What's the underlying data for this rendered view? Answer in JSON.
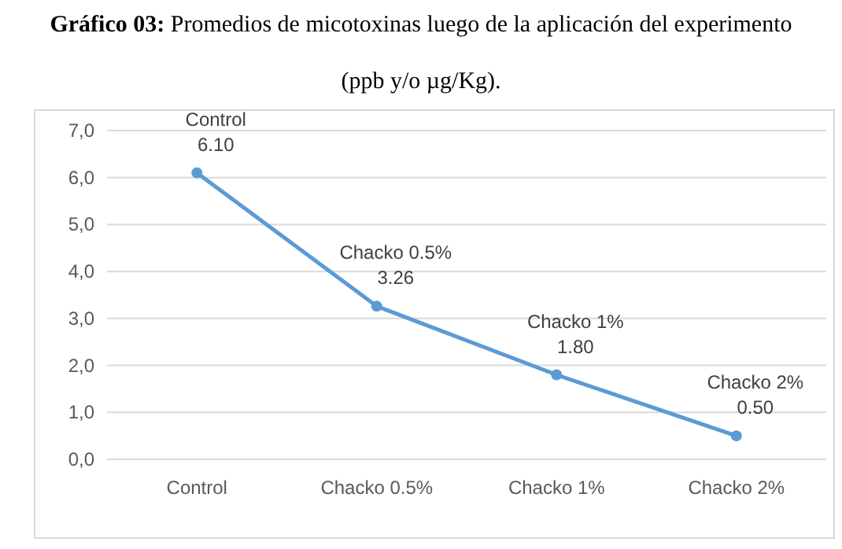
{
  "chart_data": {
    "type": "line",
    "title": "Gráfico 03: Promedios de micotoxinas luego de la aplicación del experimento",
    "subtitle": "(ppb y/o µg/Kg).",
    "categories": [
      "Control",
      "Chacko 0.5%",
      "Chacko 1%",
      "Chacko 2%"
    ],
    "series": [
      {
        "color": "#5b9bd5",
        "values": [
          6.1,
          3.26,
          1.8,
          0.5
        ],
        "value_labels": [
          "6.10",
          "3.26",
          "1.80",
          "0.50"
        ]
      }
    ],
    "ylim": [
      0,
      7
    ],
    "yticks": [
      {
        "value": 0,
        "label": "0,0"
      },
      {
        "value": 1,
        "label": "1,0"
      },
      {
        "value": 2,
        "label": "2,0"
      },
      {
        "value": 3,
        "label": "3,0"
      },
      {
        "value": 4,
        "label": "4,0"
      },
      {
        "value": 5,
        "label": "5,0"
      },
      {
        "value": 6,
        "label": "6,0"
      },
      {
        "value": 7,
        "label": "7,0"
      }
    ],
    "grid": "y",
    "marker": "circle",
    "line_style": "solid"
  }
}
